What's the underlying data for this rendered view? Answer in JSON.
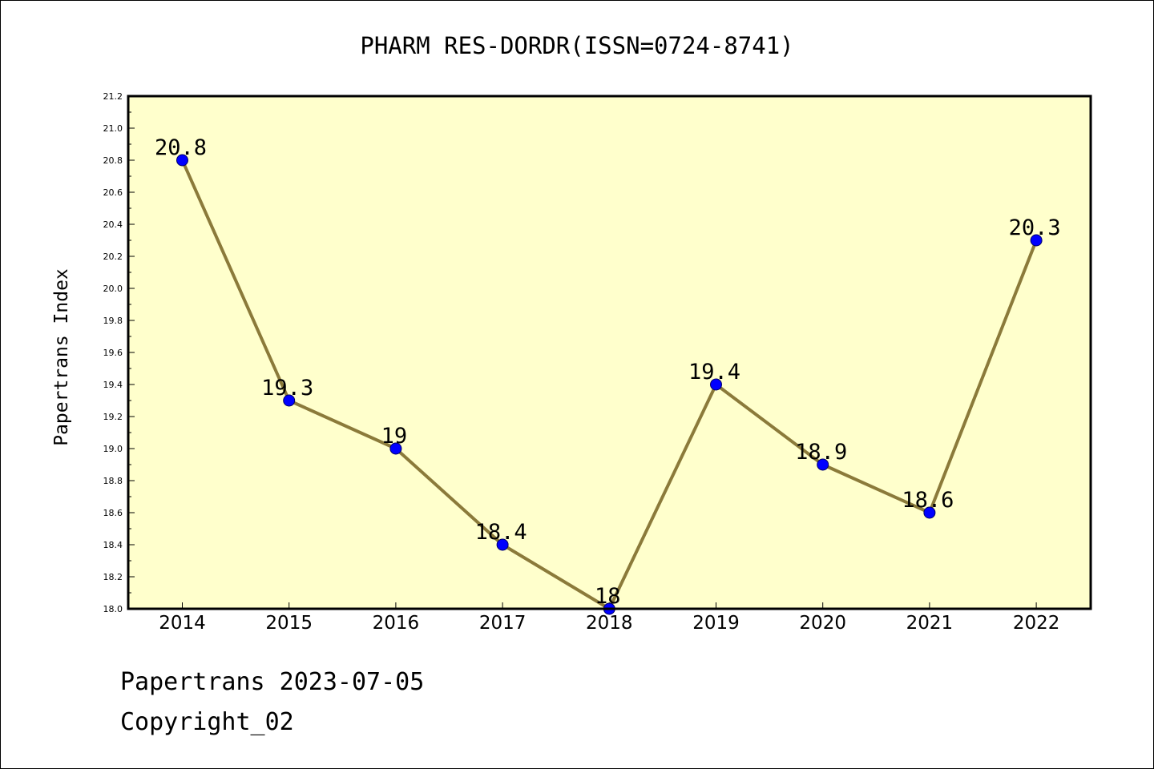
{
  "footer": {
    "line1": "Papertrans 2023-07-05",
    "line2": "Copyright_02"
  },
  "colors": {
    "plot_background": "#ffffcc",
    "line": "#8b7a3a",
    "marker": "#0000ff",
    "marker_edge": "#000066"
  },
  "chart_data": {
    "type": "line",
    "title": "PHARM RES-DORDR(ISSN=0724-8741)",
    "xlabel": "",
    "ylabel": "Papertrans Index",
    "categories": [
      "2014",
      "2015",
      "2016",
      "2017",
      "2018",
      "2019",
      "2020",
      "2021",
      "2022"
    ],
    "series": [
      {
        "values": [
          20.8,
          19.3,
          19.0,
          18.4,
          18.0,
          19.4,
          18.9,
          18.6,
          20.3
        ],
        "data_labels": [
          "20.8",
          "19.3",
          "19",
          "18.4",
          "18",
          "19.4",
          "18.9",
          "18.6",
          "20.3"
        ]
      }
    ],
    "ylim": [
      18.0,
      21.2
    ],
    "yticks": [
      "18.0",
      "18.2",
      "18.4",
      "18.6",
      "18.8",
      "19.0",
      "19.2",
      "19.4",
      "19.6",
      "19.8",
      "20.0",
      "20.2",
      "20.4",
      "20.6",
      "20.8",
      "21.0",
      "21.2"
    ],
    "grid": false,
    "legend": "none"
  }
}
